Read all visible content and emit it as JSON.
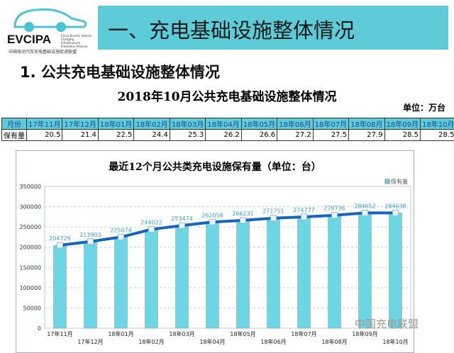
{
  "logo": {
    "text": "EVCIPA",
    "subtitle": "China Electric Vehicle Charging Infrastructure Promotion Alliance",
    "cn": "中国电动汽车充电基础设施促进联盟"
  },
  "header": {
    "title": "一、充电基础设施整体情况"
  },
  "section": {
    "title": "1. 公共充电基础设施整体情况"
  },
  "table": {
    "title": "2018年10月公共充电基础设施整体情况",
    "unit": "单位：万台",
    "header": [
      "月份",
      "17年11月",
      "17年12月",
      "18年01月",
      "18年02月",
      "18年03月",
      "18年04月",
      "18年05月",
      "18年06月",
      "18年07月",
      "18年08月",
      "18年09月",
      "18年10月"
    ],
    "row": [
      "保有量",
      "20.5",
      "21.4",
      "22.5",
      "24.4",
      "25.3",
      "26.2",
      "26.6",
      "27.2",
      "27.5",
      "27.9",
      "28.5",
      "28.5"
    ]
  },
  "chart_data": {
    "type": "bar",
    "title": "最近12个月公共类充电设施保有量（单位：台）",
    "categories": [
      "17年11月",
      "17年12月",
      "18年01月",
      "18年02月",
      "18年03月",
      "18年04月",
      "18年05月",
      "18年06月",
      "18年07月",
      "18年08月",
      "18年09月",
      "18年10月"
    ],
    "series": [
      {
        "name": "保有量",
        "values": [
          204729,
          213903,
          225074,
          244022,
          253474,
          262058,
          266231,
          271751,
          274777,
          278736,
          284652,
          284638
        ]
      }
    ],
    "overlay_line": true,
    "ylim": [
      0,
      350000
    ],
    "yticks": [
      0,
      50000,
      100000,
      150000,
      200000,
      250000,
      300000,
      350000
    ],
    "grid": true,
    "legend": "top-right",
    "colors": {
      "bar": "#6dd5e3",
      "line": "#1565c0",
      "label": "#3a9bd0"
    }
  },
  "watermark": "中国充电联盟"
}
